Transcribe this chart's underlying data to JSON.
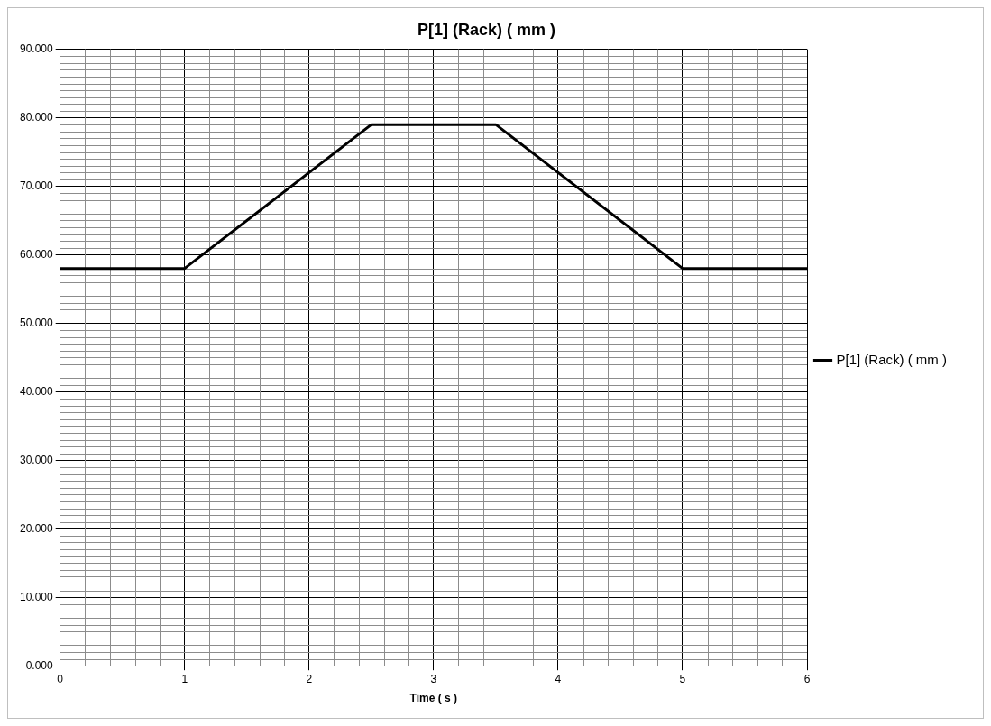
{
  "chart_data": {
    "type": "line",
    "title": "P[1] (Rack) ( mm )",
    "xlabel": "Time ( s )",
    "x": [
      0,
      1,
      2.5,
      3.5,
      5,
      6
    ],
    "series": [
      {
        "name": "P[1] (Rack) ( mm )",
        "color": "#000000",
        "values": [
          58,
          58,
          79,
          79,
          58,
          58
        ]
      }
    ],
    "xlim": [
      0,
      6
    ],
    "xticks": [
      0,
      1,
      2,
      3,
      4,
      5,
      6
    ],
    "ylim": [
      0,
      90
    ],
    "yticks": [
      {
        "value": 0,
        "label": "0.000"
      },
      {
        "value": 10,
        "label": "10.000"
      },
      {
        "value": 20,
        "label": "20.000"
      },
      {
        "value": 30,
        "label": "30.000"
      },
      {
        "value": 40,
        "label": "40.000"
      },
      {
        "value": 50,
        "label": "50.000"
      },
      {
        "value": 60,
        "label": "60.000"
      },
      {
        "value": 70,
        "label": "70.000"
      },
      {
        "value": 80,
        "label": "80.000"
      },
      {
        "value": 90,
        "label": "90.000"
      }
    ],
    "grid": true,
    "legend": "right",
    "marker": "none",
    "line_style": "solid"
  }
}
